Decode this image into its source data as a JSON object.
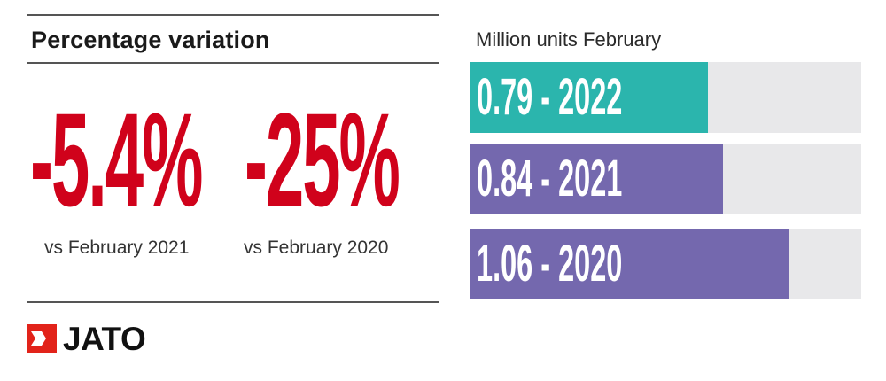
{
  "left_panel": {
    "heading": "Percentage variation",
    "stats": [
      {
        "value": "-5.4%",
        "label": "vs February 2021"
      },
      {
        "value": "-25%",
        "label": "vs February 2020"
      }
    ],
    "stat_color": "#d0021b"
  },
  "logo": {
    "text": "JATO",
    "mark_color": "#e2231a"
  },
  "chart_data": {
    "type": "bar",
    "orientation": "horizontal",
    "title": "Million units February",
    "categories": [
      "2022",
      "2021",
      "2020"
    ],
    "values": [
      0.79,
      0.84,
      1.06
    ],
    "bar_labels": [
      "0.79 - 2022",
      "0.84 - 2021",
      "1.06 - 2020"
    ],
    "colors": [
      "#2bb5ad",
      "#7468ae",
      "#7468ae"
    ],
    "track_color": "#e8e8ea",
    "xlim": [
      0,
      1.3
    ],
    "grid": false
  }
}
